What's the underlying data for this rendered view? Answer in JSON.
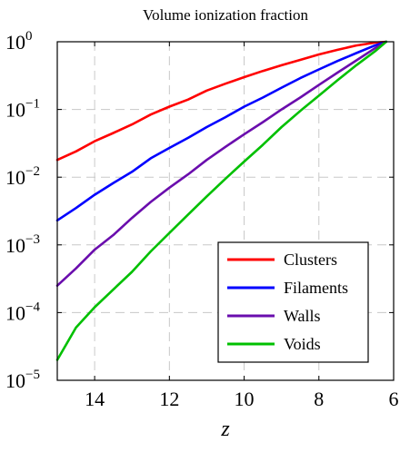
{
  "chart_data": {
    "type": "line",
    "title": "Volume ionization fraction",
    "xlabel": "z",
    "ylabel": "",
    "x_reversed": true,
    "xlim": [
      15,
      6
    ],
    "ylim": [
      1e-05,
      1
    ],
    "y_scale": "log",
    "grid": true,
    "legend_position": "bottom-right",
    "x_ticks": [
      {
        "value": 14,
        "label": "14"
      },
      {
        "value": 12,
        "label": "12"
      },
      {
        "value": 10,
        "label": "10"
      },
      {
        "value": 8,
        "label": "8"
      },
      {
        "value": 6,
        "label": "6"
      }
    ],
    "y_ticks": [
      {
        "value": 1e-05,
        "base": "10",
        "exp": "−5"
      },
      {
        "value": 0.0001,
        "base": "10",
        "exp": "−4"
      },
      {
        "value": 0.001,
        "base": "10",
        "exp": "−3"
      },
      {
        "value": 0.01,
        "base": "10",
        "exp": "−2"
      },
      {
        "value": 0.1,
        "base": "10",
        "exp": "−1"
      },
      {
        "value": 1,
        "base": "10",
        "exp": "0"
      }
    ],
    "series": [
      {
        "name": "Clusters",
        "color": "#ff0000",
        "x": [
          15,
          14.5,
          14,
          13.5,
          13,
          12.5,
          12,
          11.5,
          11,
          10.5,
          10,
          9.5,
          9,
          8.5,
          8,
          7.5,
          7,
          6.5,
          6.2
        ],
        "y": [
          0.018,
          0.024,
          0.034,
          0.045,
          0.06,
          0.084,
          0.11,
          0.14,
          0.19,
          0.24,
          0.3,
          0.37,
          0.45,
          0.54,
          0.65,
          0.76,
          0.88,
          0.97,
          1.0
        ]
      },
      {
        "name": "Filaments",
        "color": "#0000ff",
        "x": [
          15,
          14.5,
          14,
          13.5,
          13,
          12.5,
          12,
          11.5,
          11,
          10.5,
          10,
          9.5,
          9,
          8.5,
          8,
          7.5,
          7,
          6.5,
          6.2
        ],
        "y": [
          0.0023,
          0.0035,
          0.0055,
          0.0082,
          0.012,
          0.019,
          0.027,
          0.038,
          0.055,
          0.077,
          0.11,
          0.15,
          0.21,
          0.29,
          0.39,
          0.52,
          0.68,
          0.88,
          1.0
        ]
      },
      {
        "name": "Walls",
        "color": "#6a0dad",
        "x": [
          15,
          14.5,
          14,
          13.5,
          13,
          12.5,
          12,
          11.5,
          11,
          10.5,
          10,
          9.5,
          9,
          8.5,
          8,
          7.5,
          7,
          6.5,
          6.2
        ],
        "y": [
          0.00025,
          0.00045,
          0.00085,
          0.0014,
          0.0025,
          0.0043,
          0.007,
          0.011,
          0.018,
          0.028,
          0.043,
          0.065,
          0.1,
          0.15,
          0.23,
          0.35,
          0.53,
          0.8,
          1.0
        ]
      },
      {
        "name": "Voids",
        "color": "#00c000",
        "x": [
          15,
          14.5,
          14,
          13.5,
          13,
          12.5,
          12,
          11.5,
          11,
          10.5,
          10,
          9.5,
          9,
          8.5,
          8,
          7.5,
          7,
          6.5,
          6.2
        ],
        "y": [
          2e-05,
          6e-05,
          0.00012,
          0.00022,
          0.0004,
          0.0008,
          0.0015,
          0.0028,
          0.0052,
          0.0095,
          0.017,
          0.03,
          0.055,
          0.095,
          0.16,
          0.27,
          0.45,
          0.72,
          1.0
        ]
      }
    ]
  }
}
